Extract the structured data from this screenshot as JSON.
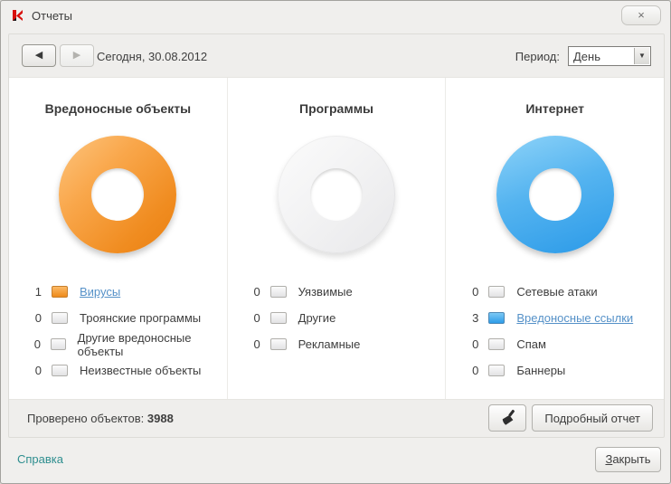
{
  "window": {
    "title": "Отчеты",
    "close_glyph": "×"
  },
  "header": {
    "prev_icon": "◀",
    "next_icon": "▶",
    "date": "Сегодня, 30.08.2012",
    "period_label": "Период:",
    "period_value": "День",
    "dropdown_arrow": "▼"
  },
  "columns": [
    {
      "title": "Вредоносные объекты",
      "donut_color": "orange",
      "items": [
        {
          "count": "1",
          "label": "Вирусы",
          "swatch": "orange",
          "link": true
        },
        {
          "count": "0",
          "label": "Троянские программы",
          "swatch": "gray",
          "link": false
        },
        {
          "count": "0",
          "label": "Другие вредоносные объекты",
          "swatch": "gray",
          "link": false
        },
        {
          "count": "0",
          "label": "Неизвестные объекты",
          "swatch": "gray",
          "link": false
        }
      ]
    },
    {
      "title": "Программы",
      "donut_color": "gray",
      "items": [
        {
          "count": "0",
          "label": "Уязвимые",
          "swatch": "gray",
          "link": false
        },
        {
          "count": "0",
          "label": "Другие",
          "swatch": "gray",
          "link": false
        },
        {
          "count": "0",
          "label": "Рекламные",
          "swatch": "gray",
          "link": false
        }
      ]
    },
    {
      "title": "Интернет",
      "donut_color": "blue",
      "items": [
        {
          "count": "0",
          "label": "Сетевые атаки",
          "swatch": "gray",
          "link": false
        },
        {
          "count": "3",
          "label": "Вредоносные ссылки",
          "swatch": "blue",
          "link": true
        },
        {
          "count": "0",
          "label": "Спам",
          "swatch": "gray",
          "link": false
        },
        {
          "count": "0",
          "label": "Баннеры",
          "swatch": "gray",
          "link": false
        }
      ]
    }
  ],
  "status": {
    "label": "Проверено объектов:",
    "value": "3988"
  },
  "actions": {
    "detailed_report": "Подробный отчет"
  },
  "footer": {
    "help": "Справка",
    "close_first": "З",
    "close_rest": "акрыть"
  },
  "colors": {
    "accent_orange": "#f08c20",
    "accent_blue": "#2b9ae8",
    "link": "#5591c8",
    "help_link": "#2e8e8f"
  }
}
